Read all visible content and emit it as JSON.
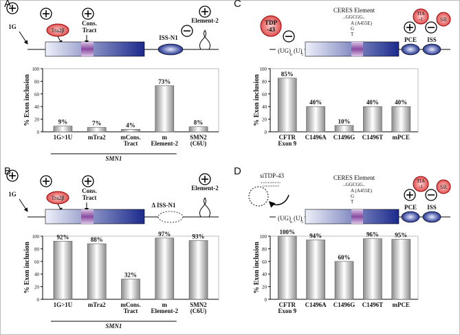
{
  "chart_data": [
    {
      "type": "bar",
      "panel": "A",
      "ylabel": "% Exon inclusion",
      "categories": [
        [
          "1G>1U"
        ],
        [
          "mTra2"
        ],
        [
          "mCons.",
          "Tract"
        ],
        [
          "m",
          "Element-2"
        ],
        [
          "SMN2",
          "(C6U)"
        ]
      ],
      "values": [
        9,
        7,
        4,
        73,
        8
      ],
      "value_labels": [
        "9%",
        "7%",
        "4%",
        "73%",
        "8%"
      ],
      "group_label": "SMN1",
      "ylim": [
        0,
        100
      ],
      "yticks": [
        0,
        20,
        40,
        60,
        80,
        100
      ],
      "color": "#8c8c8c",
      "annotations": [
        "1G",
        "Tra2β",
        "Cons.",
        "Tract",
        "ISS-N1",
        "Element-2"
      ]
    },
    {
      "type": "bar",
      "panel": "B",
      "ylabel": "% Exon inclusion",
      "categories": [
        [
          "1G>1U"
        ],
        [
          "mTra2"
        ],
        [
          "mCons.",
          "Tract"
        ],
        [
          "m",
          "Element-2"
        ],
        [
          "SMN2",
          "(C6U)"
        ]
      ],
      "values": [
        92,
        88,
        32,
        97,
        93
      ],
      "value_labels": [
        "92%",
        "88%",
        "32%",
        "97%",
        "93%"
      ],
      "group_label": "SMN1",
      "ylim": [
        0,
        100
      ],
      "yticks": [
        0,
        20,
        40,
        60,
        80,
        100
      ],
      "color": "#8c8c8c",
      "annotations": [
        "1G",
        "Tra2β",
        "Cons.",
        "Tract",
        "Δ ISS-N1",
        "Element-2"
      ]
    },
    {
      "type": "bar",
      "panel": "C",
      "ylabel": "% Exon inclusion",
      "categories": [
        [
          "CFTR",
          "Exon 9"
        ],
        [
          "C1496A"
        ],
        [
          "C1496G"
        ],
        [
          "C1496T"
        ],
        [
          "mPCE"
        ]
      ],
      "values": [
        85,
        40,
        10,
        40,
        40
      ],
      "value_labels": [
        "85%",
        "40%",
        "10%",
        "40%",
        "40%"
      ],
      "ylim": [
        0,
        100
      ],
      "yticks": [
        0,
        20,
        40,
        60,
        80,
        100
      ],
      "color": "#8c8c8c",
      "annotations": [
        "TDP",
        "-43",
        "CERES Element",
        "..GGCGG..",
        "A (A455E)",
        "G",
        "T",
        "TIA",
        "-1",
        "SR",
        "PCE",
        "ISS",
        "(UG)",
        "n",
        "(U)",
        "5"
      ]
    },
    {
      "type": "bar",
      "panel": "D",
      "ylabel": "% Exon inclusion",
      "categories": [
        [
          "CFTR",
          "Exon 9"
        ],
        [
          "C1496A"
        ],
        [
          "C1496G"
        ],
        [
          "C1496T"
        ],
        [
          "mPCE"
        ]
      ],
      "values": [
        100,
        94,
        60,
        96,
        95
      ],
      "value_labels": [
        "100%",
        "94%",
        "60%",
        "96%",
        "95%"
      ],
      "ylim": [
        0,
        100
      ],
      "yticks": [
        0,
        20,
        40,
        60,
        80,
        100
      ],
      "color": "#8c8c8c",
      "annotations": [
        "siTDP-43",
        "CERES Element",
        "..GGCGG..",
        "A (A455E)",
        "G",
        "T",
        "TIA",
        "-1",
        "SR",
        "PCE",
        "ISS",
        "(UG)",
        "n",
        "(U)",
        "5"
      ]
    }
  ]
}
